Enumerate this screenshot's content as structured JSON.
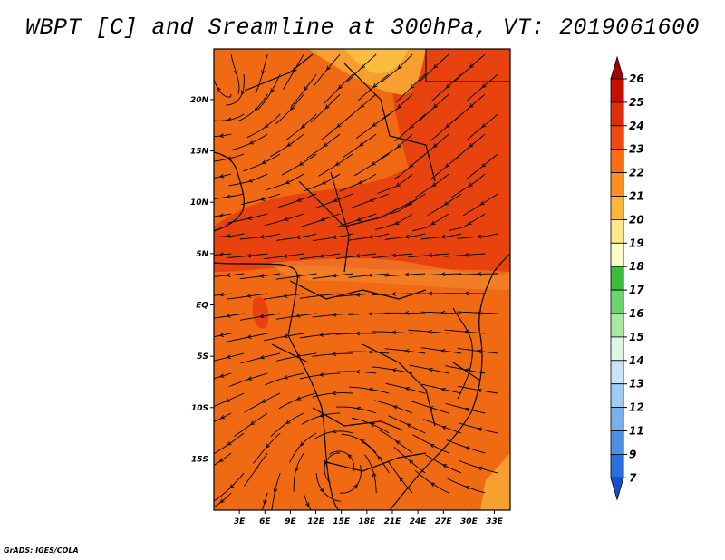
{
  "title": "WBPT [C] and Sreamline at 300hPa, VT: 2019061600",
  "credit": "GrADS: IGES/COLA",
  "map": {
    "lat_labels": [
      {
        "label": "20N",
        "lat": 20
      },
      {
        "label": "15N",
        "lat": 15
      },
      {
        "label": "10N",
        "lat": 10
      },
      {
        "label": "5N",
        "lat": 5
      },
      {
        "label": "EQ",
        "lat": 0
      },
      {
        "label": "5S",
        "lat": -5
      },
      {
        "label": "10S",
        "lat": -10
      },
      {
        "label": "15S",
        "lat": -15
      }
    ],
    "lon_labels": [
      {
        "label": "3E",
        "lon": 3
      },
      {
        "label": "6E",
        "lon": 6
      },
      {
        "label": "9E",
        "lon": 9
      },
      {
        "label": "12E",
        "lon": 12
      },
      {
        "label": "15E",
        "lon": 15
      },
      {
        "label": "18E",
        "lon": 18
      },
      {
        "label": "21E",
        "lon": 21
      },
      {
        "label": "24E",
        "lon": 24
      },
      {
        "label": "27E",
        "lon": 27
      },
      {
        "label": "30E",
        "lon": 30
      },
      {
        "label": "33E",
        "lon": 33
      }
    ],
    "lon_range": [
      0,
      35
    ],
    "lat_range": [
      -20,
      25
    ],
    "field_colors": {
      "dominant": "#f06a14",
      "warm": "#e8420e",
      "cool": "#f7a030"
    }
  },
  "colorbar": {
    "levels": [
      "26",
      "25",
      "24",
      "23",
      "22",
      "21",
      "20",
      "19",
      "18",
      "17",
      "16",
      "15",
      "14",
      "13",
      "12",
      "11",
      "9",
      "7"
    ],
    "colors": [
      "#a80000",
      "#c81000",
      "#e02c08",
      "#f04a10",
      "#f86e14",
      "#fa9020",
      "#fcb63c",
      "#fde88c",
      "#fffac8",
      "#3cbc3c",
      "#6cd46c",
      "#a8e8a0",
      "#dcf8e4",
      "#c8e4f8",
      "#a0ccf4",
      "#78b0ec",
      "#4c90e4",
      "#2870dc",
      "#1450d0"
    ]
  }
}
